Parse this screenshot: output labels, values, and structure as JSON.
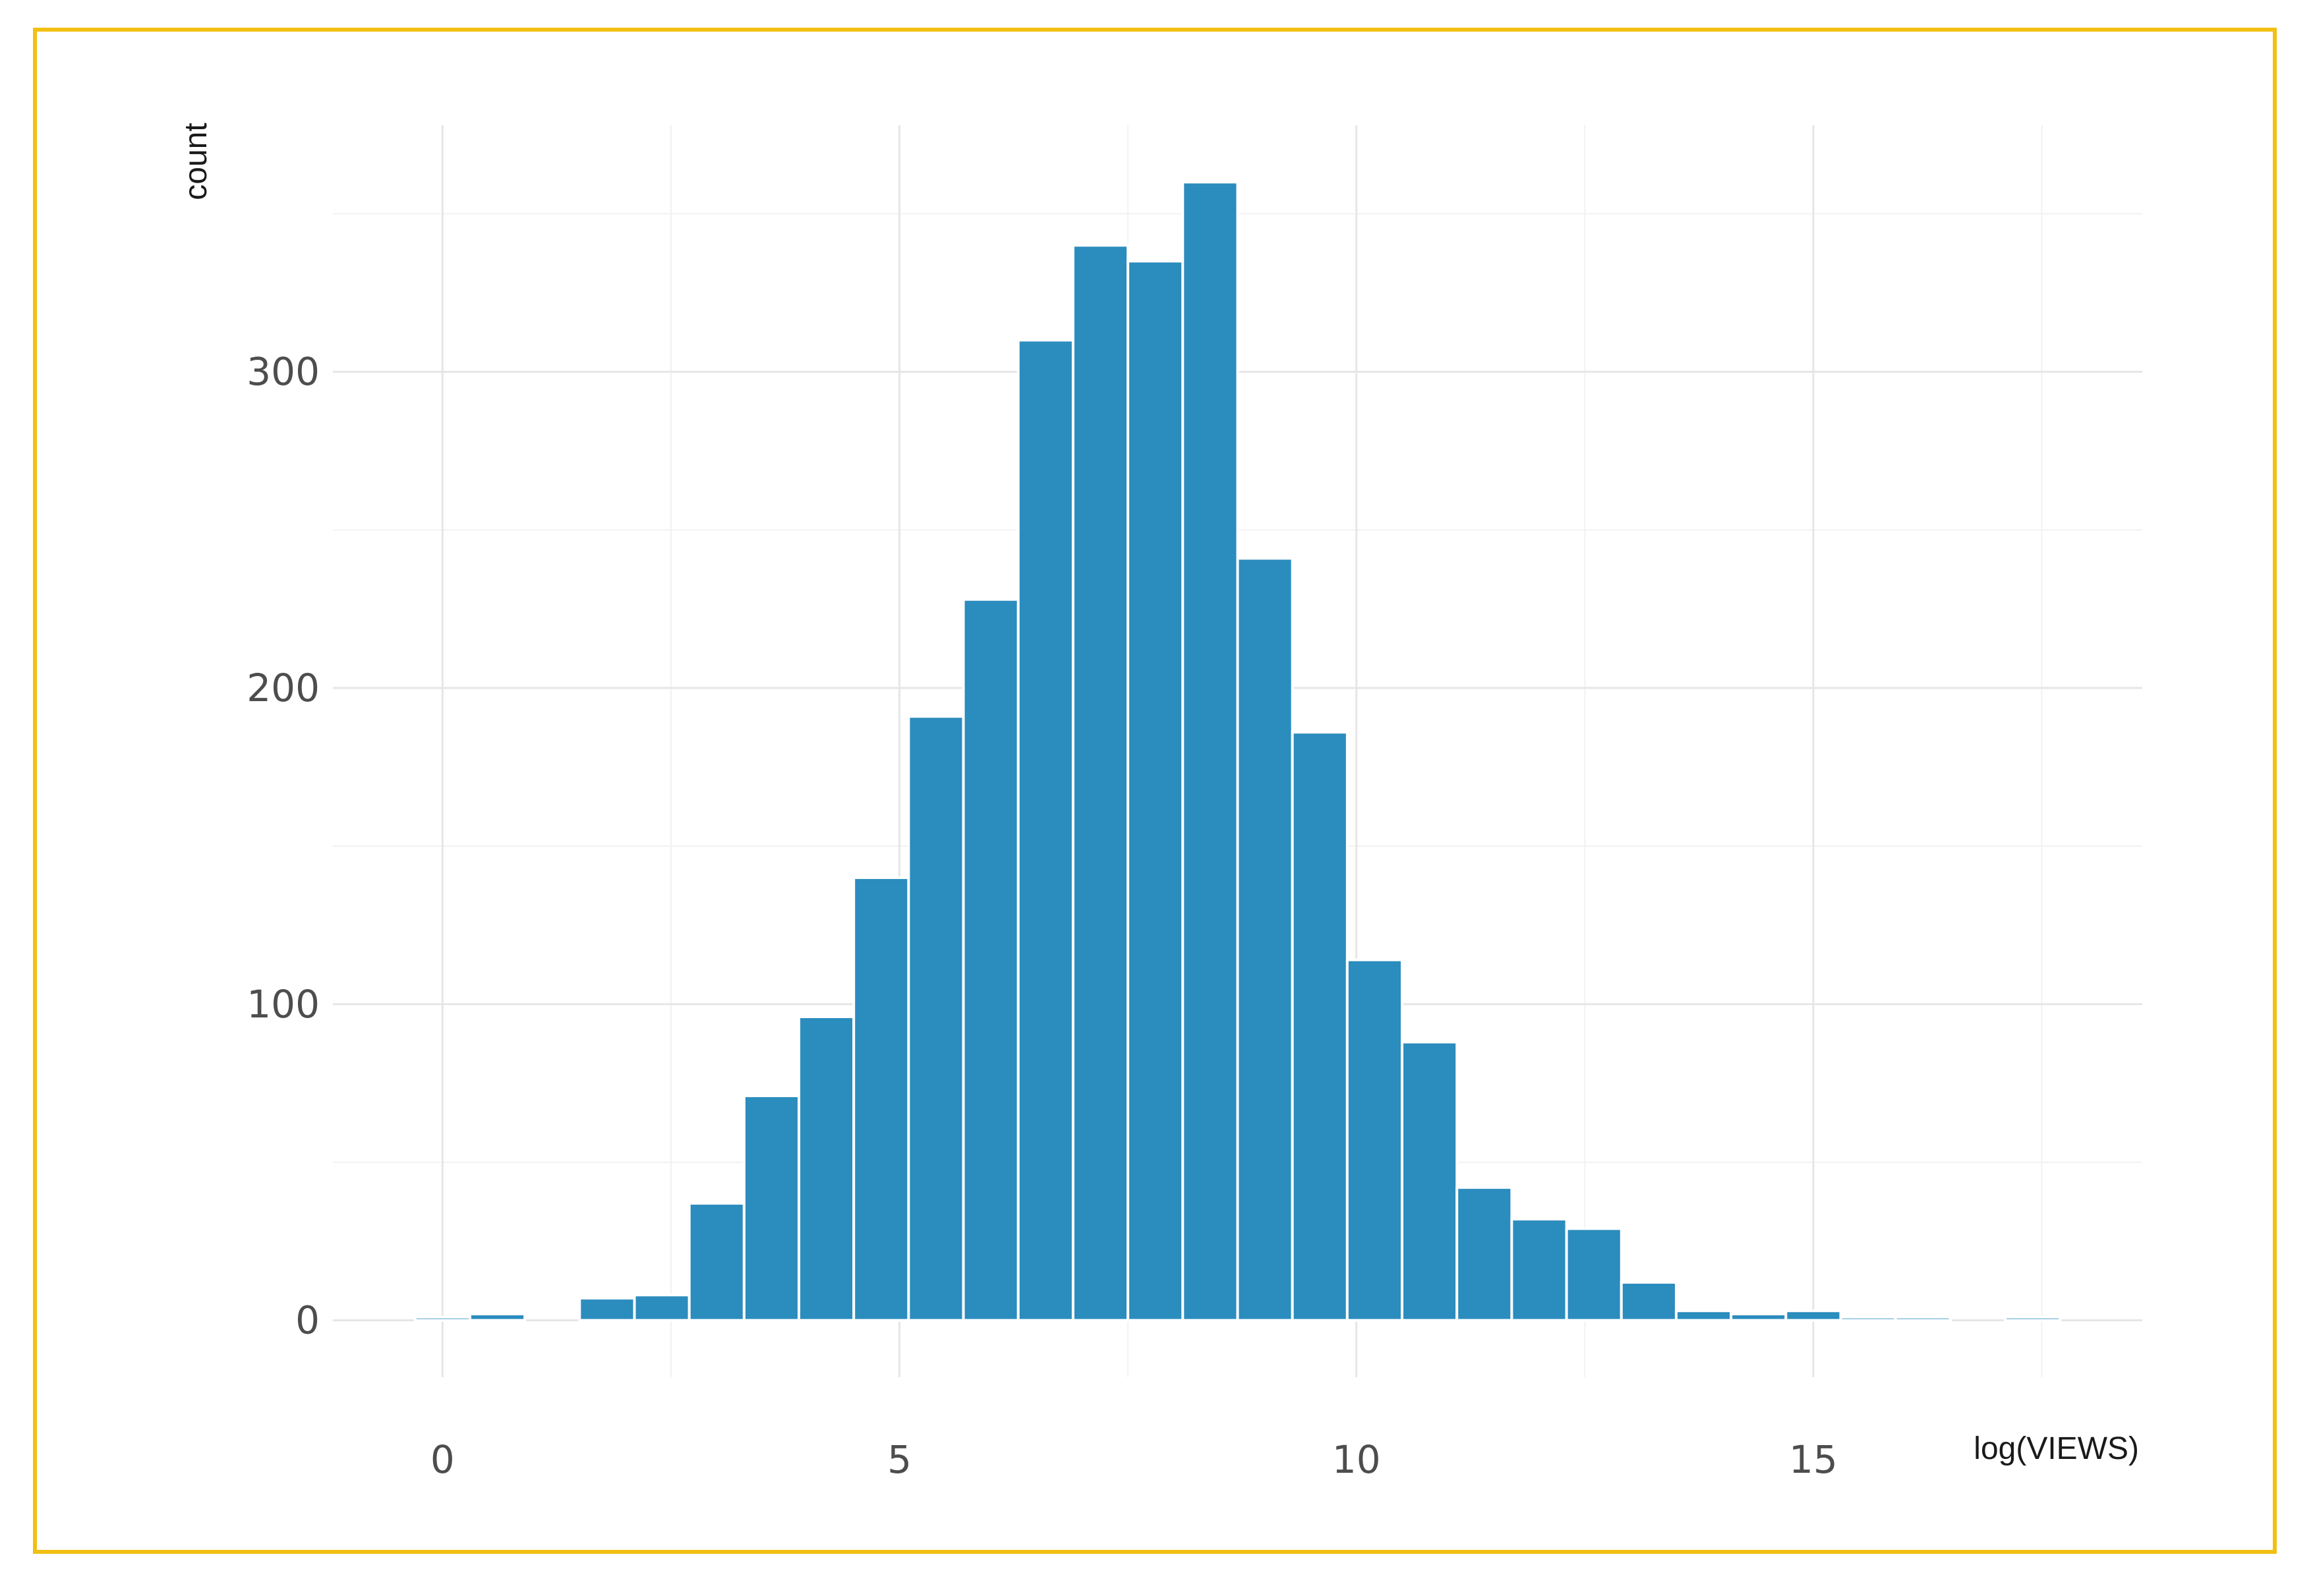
{
  "chart_data": {
    "type": "bar",
    "title": "",
    "xlabel": "log(VIEWS)",
    "ylabel": "count",
    "x_ticks": [
      0,
      5,
      10,
      15
    ],
    "y_ticks": [
      0,
      100,
      200,
      300
    ],
    "xlim": [
      -1.2,
      18.6
    ],
    "ylim": [
      -18,
      378
    ],
    "grid": true,
    "bin_width": 0.6,
    "bar_color": "#2b8cbe",
    "bins": [
      {
        "x": 0.0,
        "count": 1
      },
      {
        "x": 0.6,
        "count": 2
      },
      {
        "x": 1.8,
        "count": 7
      },
      {
        "x": 2.4,
        "count": 8
      },
      {
        "x": 3.0,
        "count": 37
      },
      {
        "x": 3.6,
        "count": 71
      },
      {
        "x": 4.2,
        "count": 96
      },
      {
        "x": 4.8,
        "count": 140
      },
      {
        "x": 5.4,
        "count": 191
      },
      {
        "x": 6.0,
        "count": 228
      },
      {
        "x": 6.6,
        "count": 310
      },
      {
        "x": 7.2,
        "count": 340
      },
      {
        "x": 7.8,
        "count": 335
      },
      {
        "x": 8.4,
        "count": 360
      },
      {
        "x": 9.0,
        "count": 241
      },
      {
        "x": 9.6,
        "count": 186
      },
      {
        "x": 10.2,
        "count": 114
      },
      {
        "x": 10.8,
        "count": 88
      },
      {
        "x": 11.4,
        "count": 42
      },
      {
        "x": 12.0,
        "count": 32
      },
      {
        "x": 12.6,
        "count": 29
      },
      {
        "x": 13.2,
        "count": 12
      },
      {
        "x": 13.8,
        "count": 3
      },
      {
        "x": 14.4,
        "count": 2
      },
      {
        "x": 15.0,
        "count": 3
      },
      {
        "x": 15.6,
        "count": 1
      },
      {
        "x": 16.2,
        "count": 1
      },
      {
        "x": 17.4,
        "count": 1
      }
    ]
  }
}
